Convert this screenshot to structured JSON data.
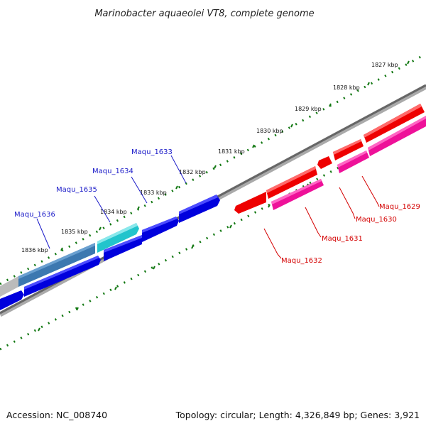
{
  "title": "Marinobacter aquaeolei VT8, complete genome",
  "footer": {
    "accession": "Accession: NC_008740",
    "summary": "Topology: circular; Length: 4,326,849 bp; Genes: 3,921"
  },
  "kbp_ticks": [
    "1827 kbp",
    "1828 kbp",
    "1829 kbp",
    "1830 kbp",
    "1831 kbp",
    "1832 kbp",
    "1833 kbp",
    "1834 kbp",
    "1835 kbp",
    "1836 kbp"
  ],
  "genes": {
    "maqu_1629": "Maqu_1629",
    "maqu_1630": "Maqu_1630",
    "maqu_1631": "Maqu_1631",
    "maqu_1632": "Maqu_1632",
    "maqu_1633": "Maqu_1633",
    "maqu_1634": "Maqu_1634",
    "maqu_1635": "Maqu_1635",
    "maqu_1636": "Maqu_1636"
  },
  "colors": {
    "forward_blue": "#0000dd",
    "cyan": "#22c4cc",
    "red": "#ee0000",
    "magenta": "#ee1199",
    "backbone": "#777777",
    "ticks": "#117711"
  }
}
